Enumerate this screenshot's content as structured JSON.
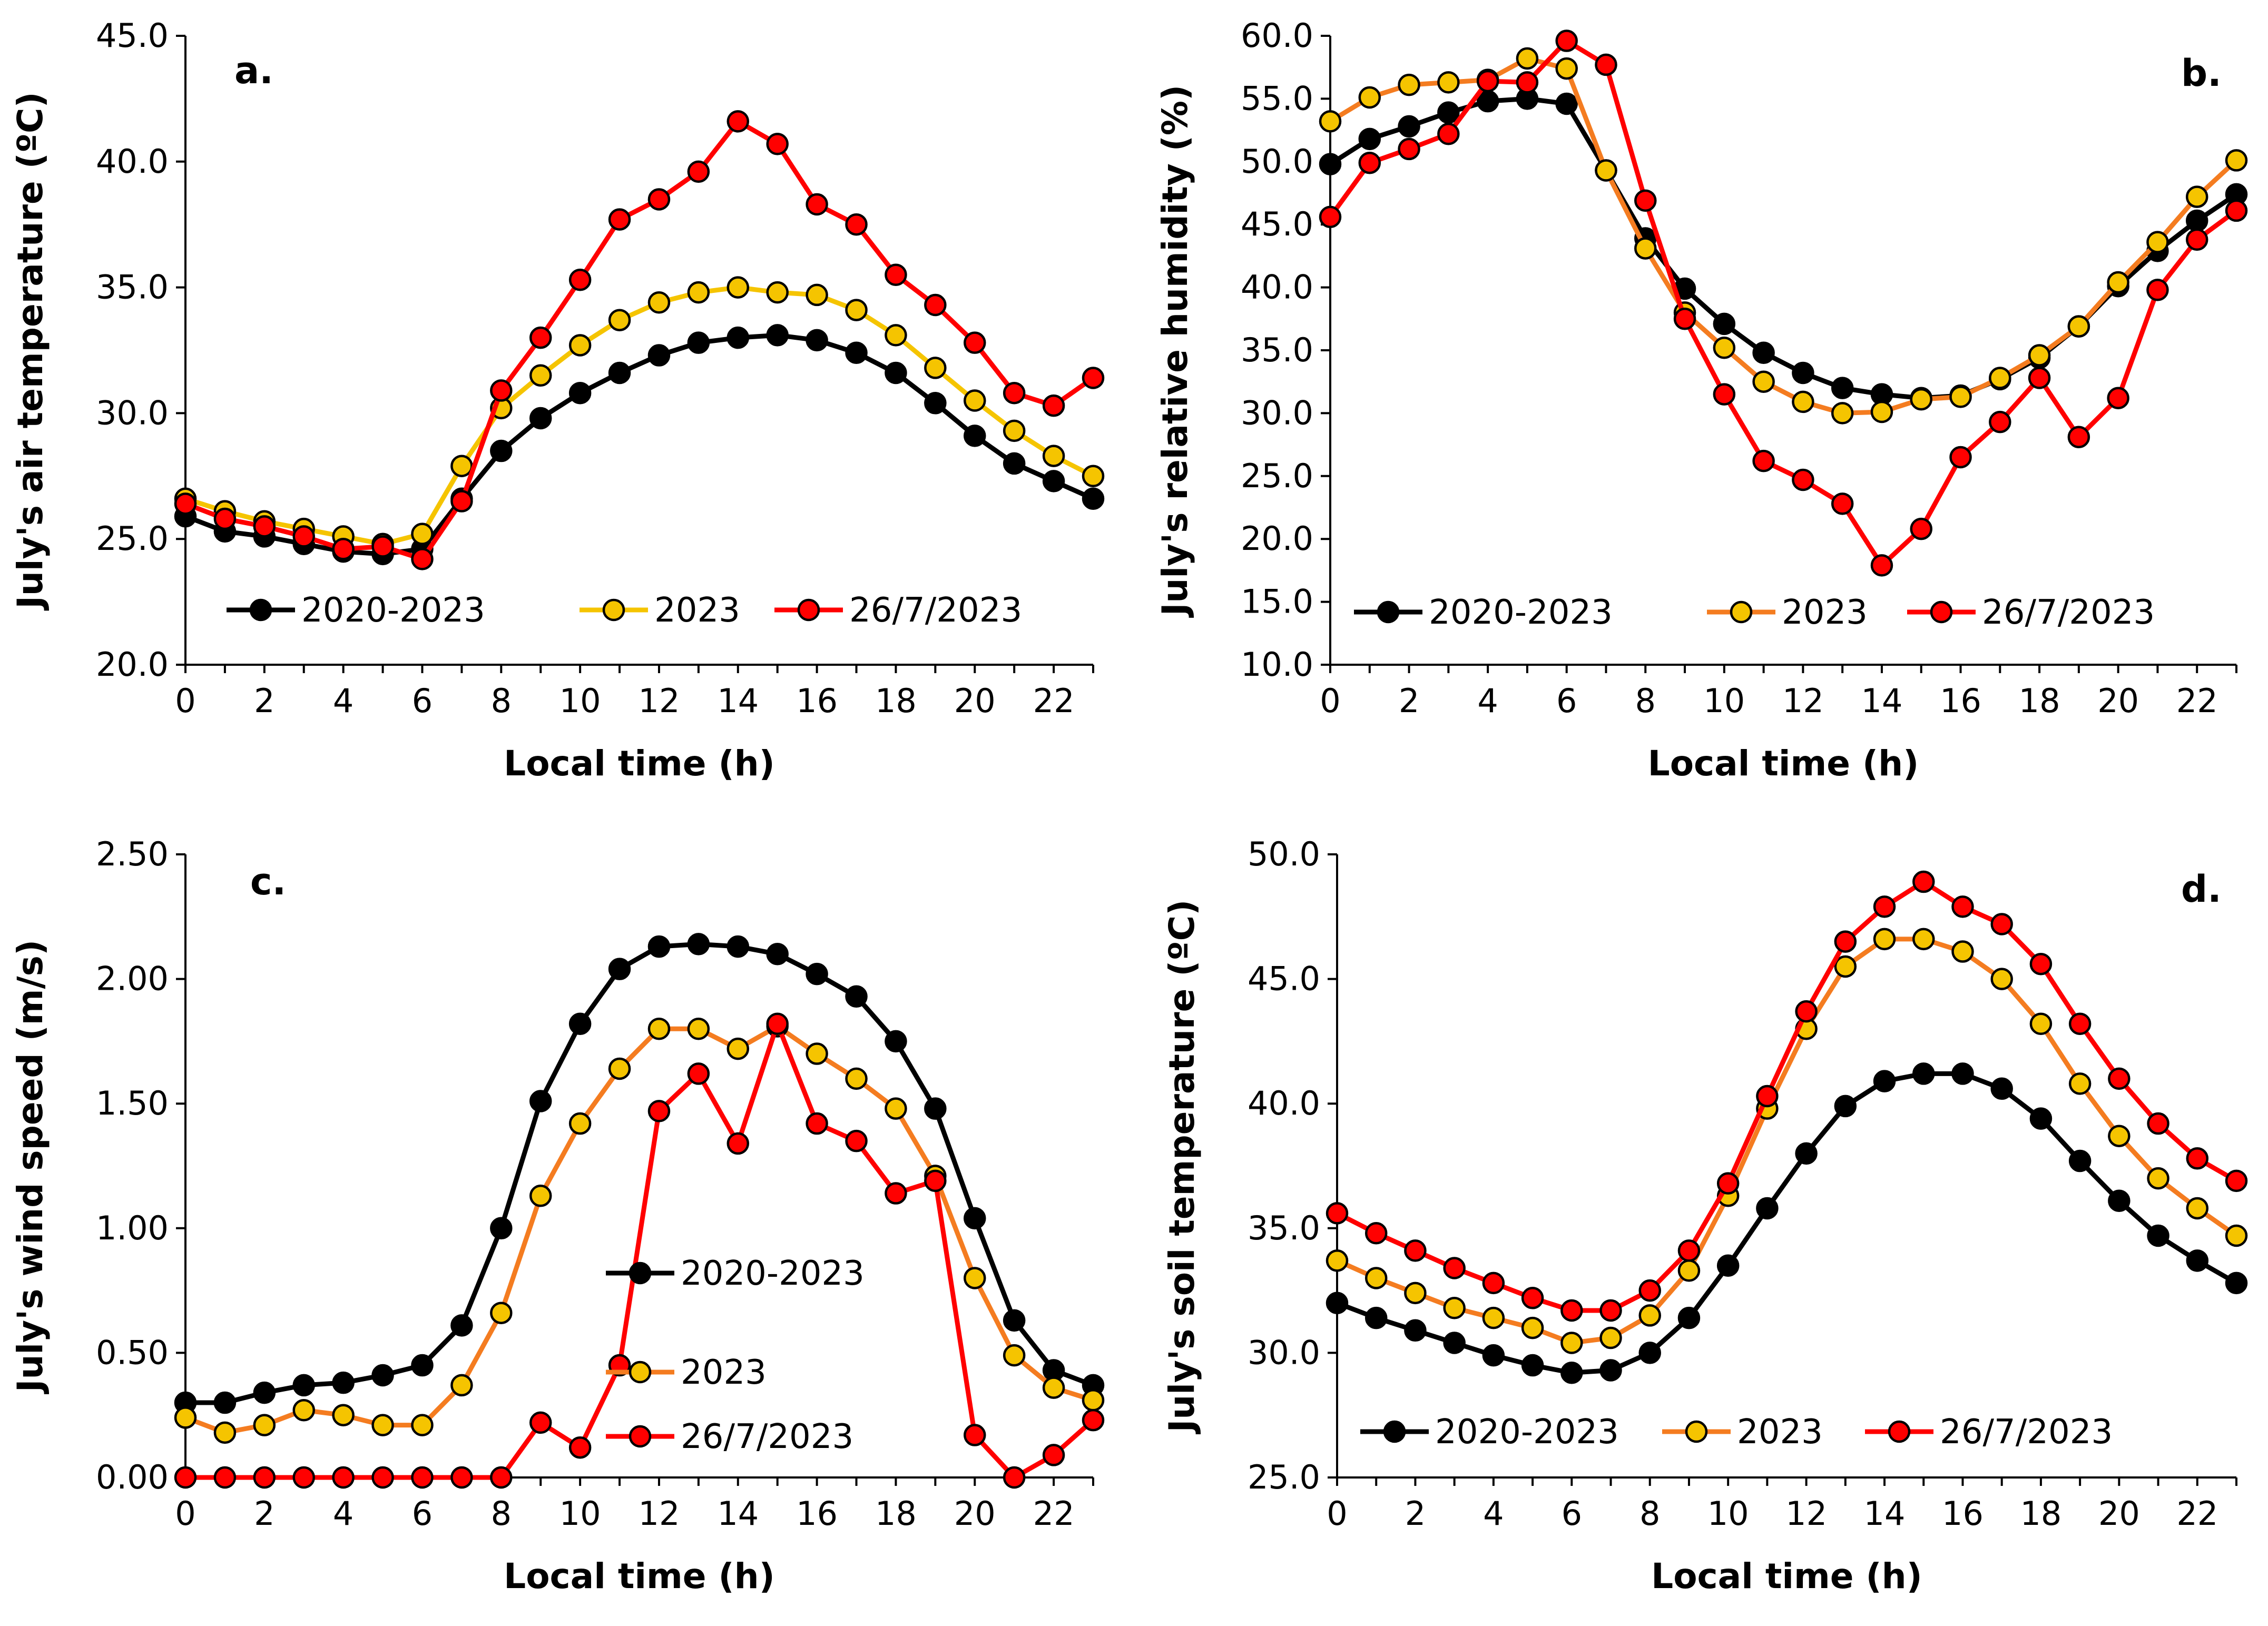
{
  "chart_data": [
    {
      "type": "line",
      "panel_label": "a.",
      "title": "",
      "xlabel": "Local time (h)",
      "ylabel": "July's air temperature (ºC)",
      "xlim": [
        0,
        23
      ],
      "ylim": [
        20,
        45
      ],
      "x_ticks": [
        0,
        2,
        4,
        6,
        8,
        10,
        12,
        14,
        16,
        18,
        20,
        22
      ],
      "x_tick_labels": [
        "0",
        "2",
        "4",
        "6",
        "8",
        "10",
        "12",
        "14",
        "16",
        "18",
        "20",
        "22"
      ],
      "y_ticks": [
        20,
        25,
        30,
        35,
        40,
        45
      ],
      "y_tick_labels": [
        "20.0",
        "25.0",
        "30.0",
        "35.0",
        "40.0",
        "45.0"
      ],
      "legend_position": "bottom",
      "x": [
        0,
        1,
        2,
        3,
        4,
        5,
        6,
        7,
        8,
        9,
        10,
        11,
        12,
        13,
        14,
        15,
        16,
        17,
        18,
        19,
        20,
        21,
        22,
        23
      ],
      "series": [
        {
          "name": "2020-2023",
          "line_color": "#000000",
          "marker_fill": "#000000",
          "values": [
            25.9,
            25.3,
            25.1,
            24.8,
            24.5,
            24.4,
            24.6,
            26.6,
            28.5,
            29.8,
            30.8,
            31.6,
            32.3,
            32.8,
            33.0,
            33.1,
            32.9,
            32.4,
            31.6,
            30.4,
            29.1,
            28.0,
            27.3,
            26.6
          ]
        },
        {
          "name": "2023",
          "line_color": "#F5C400",
          "marker_fill": "#F5C400",
          "values": [
            26.6,
            26.1,
            25.7,
            25.4,
            25.1,
            24.8,
            25.2,
            27.9,
            30.2,
            31.5,
            32.7,
            33.7,
            34.4,
            34.8,
            35.0,
            34.8,
            34.7,
            34.1,
            33.1,
            31.8,
            30.5,
            29.3,
            28.3,
            27.5
          ]
        },
        {
          "name": "26/7/2023",
          "line_color": "#FF0000",
          "marker_fill": "#FF0000",
          "values": [
            26.4,
            25.8,
            25.5,
            25.1,
            24.6,
            24.7,
            24.2,
            26.5,
            30.9,
            33.0,
            35.3,
            37.7,
            38.5,
            39.6,
            41.6,
            40.7,
            38.3,
            37.5,
            35.5,
            34.3,
            32.8,
            30.8,
            30.3,
            31.4
          ]
        }
      ]
    },
    {
      "type": "line",
      "panel_label": "b.",
      "title": "",
      "xlabel": "Local time (h)",
      "ylabel": "July's relative humidity (%)",
      "xlim": [
        0,
        23
      ],
      "ylim": [
        10,
        60
      ],
      "x_ticks": [
        0,
        2,
        4,
        6,
        8,
        10,
        12,
        14,
        16,
        18,
        20,
        22
      ],
      "x_tick_labels": [
        "0",
        "2",
        "4",
        "6",
        "8",
        "10",
        "12",
        "14",
        "16",
        "18",
        "20",
        "22"
      ],
      "y_ticks": [
        10,
        15,
        20,
        25,
        30,
        35,
        40,
        45,
        50,
        55,
        60
      ],
      "y_tick_labels": [
        "10.0",
        "15.0",
        "20.0",
        "25.0",
        "30.0",
        "35.0",
        "40.0",
        "45.0",
        "50.0",
        "55.0",
        "60.0"
      ],
      "legend_position": "bottom",
      "x": [
        0,
        1,
        2,
        3,
        4,
        5,
        6,
        7,
        8,
        9,
        10,
        11,
        12,
        13,
        14,
        15,
        16,
        17,
        18,
        19,
        20,
        21,
        22,
        23
      ],
      "series": [
        {
          "name": "2020-2023",
          "line_color": "#000000",
          "marker_fill": "#000000",
          "values": [
            49.8,
            51.8,
            52.8,
            53.9,
            54.8,
            55.0,
            54.6,
            49.3,
            43.9,
            39.9,
            37.1,
            34.8,
            33.2,
            32.0,
            31.5,
            31.2,
            31.4,
            32.7,
            34.4,
            36.9,
            40.1,
            42.9,
            45.3,
            47.4
          ]
        },
        {
          "name": "2023",
          "line_color": "#F47C20",
          "marker_fill": "#F5C400",
          "values": [
            53.2,
            55.1,
            56.1,
            56.3,
            56.5,
            58.2,
            57.4,
            49.3,
            43.1,
            38.0,
            35.2,
            32.5,
            30.9,
            30.0,
            30.1,
            31.1,
            31.3,
            32.8,
            34.6,
            36.9,
            40.4,
            43.6,
            47.2,
            50.1
          ]
        },
        {
          "name": "26/7/2023",
          "line_color": "#FF0000",
          "marker_fill": "#FF0000",
          "values": [
            45.6,
            49.9,
            51.0,
            52.2,
            56.4,
            56.3,
            59.6,
            57.7,
            46.9,
            37.5,
            31.5,
            26.2,
            24.7,
            22.8,
            17.9,
            20.8,
            26.5,
            29.3,
            32.8,
            28.1,
            31.2,
            39.8,
            43.8,
            46.1
          ]
        }
      ]
    },
    {
      "type": "line",
      "panel_label": "c.",
      "title": "",
      "xlabel": "Local time (h)",
      "ylabel": "July's wind speed (m/s)",
      "xlim": [
        0,
        23
      ],
      "ylim": [
        0,
        2.5
      ],
      "x_ticks": [
        0,
        2,
        4,
        6,
        8,
        10,
        12,
        14,
        16,
        18,
        20,
        22
      ],
      "x_tick_labels": [
        "0",
        "2",
        "4",
        "6",
        "8",
        "10",
        "12",
        "14",
        "16",
        "18",
        "20",
        "22"
      ],
      "y_ticks": [
        0,
        0.5,
        1.0,
        1.5,
        2.0,
        2.5
      ],
      "y_tick_labels": [
        "0.00",
        "0.50",
        "1.00",
        "1.50",
        "2.00",
        "2.50"
      ],
      "legend_position": "bottom-right",
      "x": [
        0,
        1,
        2,
        3,
        4,
        5,
        6,
        7,
        8,
        9,
        10,
        11,
        12,
        13,
        14,
        15,
        16,
        17,
        18,
        19,
        20,
        21,
        22,
        23
      ],
      "series": [
        {
          "name": "2020-2023",
          "line_color": "#000000",
          "marker_fill": "#000000",
          "values": [
            0.3,
            0.3,
            0.34,
            0.37,
            0.38,
            0.41,
            0.45,
            0.61,
            1.0,
            1.51,
            1.82,
            2.04,
            2.13,
            2.14,
            2.13,
            2.1,
            2.02,
            1.93,
            1.75,
            1.48,
            1.04,
            0.63,
            0.43,
            0.37
          ]
        },
        {
          "name": "2023",
          "line_color": "#F47C20",
          "marker_fill": "#F5C400",
          "values": [
            0.24,
            0.18,
            0.21,
            0.27,
            0.25,
            0.21,
            0.21,
            0.37,
            0.66,
            1.13,
            1.42,
            1.64,
            1.8,
            1.8,
            1.72,
            1.81,
            1.7,
            1.6,
            1.48,
            1.21,
            0.8,
            0.49,
            0.36,
            0.31
          ]
        },
        {
          "name": "26/7/2023",
          "line_color": "#FF0000",
          "marker_fill": "#FF0000",
          "values": [
            0.0,
            0.0,
            0.0,
            0.0,
            0.0,
            0.0,
            0.0,
            0.0,
            0.0,
            0.22,
            0.12,
            0.45,
            1.47,
            1.62,
            1.34,
            1.82,
            1.42,
            1.35,
            1.14,
            1.19,
            0.17,
            0.0,
            0.09,
            0.23
          ]
        }
      ]
    },
    {
      "type": "line",
      "panel_label": "d.",
      "title": "",
      "xlabel": "Local time (h)",
      "ylabel": "July's soil temperature (ºC)",
      "xlim": [
        0,
        23
      ],
      "ylim": [
        25,
        50
      ],
      "x_ticks": [
        0,
        2,
        4,
        6,
        8,
        10,
        12,
        14,
        16,
        18,
        20,
        22
      ],
      "x_tick_labels": [
        "0",
        "2",
        "4",
        "6",
        "8",
        "10",
        "12",
        "14",
        "16",
        "18",
        "20",
        "22"
      ],
      "y_ticks": [
        25,
        30,
        35,
        40,
        45,
        50
      ],
      "y_tick_labels": [
        "25.0",
        "30.0",
        "35.0",
        "40.0",
        "45.0",
        "50.0"
      ],
      "legend_position": "bottom",
      "x": [
        0,
        1,
        2,
        3,
        4,
        5,
        6,
        7,
        8,
        9,
        10,
        11,
        12,
        13,
        14,
        15,
        16,
        17,
        18,
        19,
        20,
        21,
        22,
        23
      ],
      "series": [
        {
          "name": "2020-2023",
          "line_color": "#000000",
          "marker_fill": "#000000",
          "values": [
            32.0,
            31.4,
            30.9,
            30.4,
            29.9,
            29.5,
            29.2,
            29.3,
            30.0,
            31.4,
            33.5,
            35.8,
            38.0,
            39.9,
            40.9,
            41.2,
            41.2,
            40.6,
            39.4,
            37.7,
            36.1,
            34.7,
            33.7,
            32.8
          ]
        },
        {
          "name": "2023",
          "line_color": "#F47C20",
          "marker_fill": "#F5C400",
          "values": [
            33.7,
            33.0,
            32.4,
            31.8,
            31.4,
            31.0,
            30.4,
            30.6,
            31.5,
            33.3,
            36.3,
            39.8,
            43.0,
            45.5,
            46.6,
            46.6,
            46.1,
            45.0,
            43.2,
            40.8,
            38.7,
            37.0,
            35.8,
            34.7
          ]
        },
        {
          "name": "26/7/2023",
          "line_color": "#FF0000",
          "marker_fill": "#FF0000",
          "values": [
            35.6,
            34.8,
            34.1,
            33.4,
            32.8,
            32.2,
            31.7,
            31.7,
            32.5,
            34.1,
            36.8,
            40.3,
            43.7,
            46.5,
            47.9,
            48.9,
            47.9,
            47.2,
            45.6,
            43.2,
            41.0,
            39.2,
            37.8,
            36.9
          ]
        }
      ]
    }
  ]
}
